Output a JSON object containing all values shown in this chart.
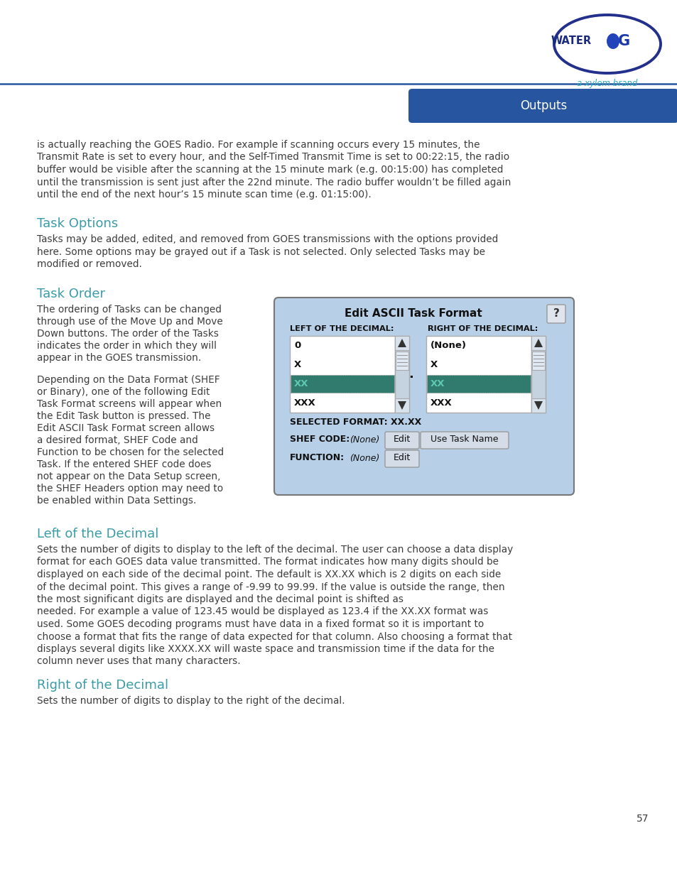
{
  "page_bg": "#ffffff",
  "header_bar_color": "#2855a0",
  "header_text": "Outputs",
  "header_text_color": "#ffffff",
  "section_color_teal": "#3a9ca6",
  "body_text_color": "#3d3d3d",
  "body_para1": "is actually reaching the GOES Radio. For example if scanning occurs every 15 minutes, the\nTransmit Rate is set to every hour, and the Self-Timed Transmit Time is set to 00:22:15, the radio\nbuffer would be visible after the scanning at the 15 minute mark (e.g. 00:15:00) has completed\nuntil the transmission is sent just after the 22nd minute. The radio buffer wouldn’t be filled again\nuntil the end of the next hour’s 15 minute scan time (e.g. 01:15:00).",
  "section1_title": "Task Options",
  "section1_body": "Tasks may be added, edited, and removed from GOES transmissions with the options provided\nhere. Some options may be grayed out if a Task is not selected. Only selected Tasks may be\nmodified or removed.",
  "section2_title": "Task Order",
  "section2_body1": "The ordering of Tasks can be changed\nthrough use of the Move Up and Move\nDown buttons. The order of the Tasks\nindicates the order in which they will\nappear in the GOES transmission.",
  "section2_body2": "Depending on the Data Format (SHEF\nor Binary), one of the following Edit\nTask Format screens will appear when\nthe Edit Task button is pressed. The\nEdit ASCII Task Format screen allows\na desired format, SHEF Code and\nFunction to be chosen for the selected\nTask. If the entered SHEF code does\nnot appear on the Data Setup screen,\nthe SHEF Headers option may need to\nbe enabled within Data Settings.",
  "section3_title": "Left of the Decimal",
  "section3_body": "Sets the number of digits to display to the left of the decimal. The user can choose a data display\nformat for each GOES data value transmitted. The format indicates how many digits should be\ndisplayed on each side of the decimal point. The default is XX.XX which is 2 digits on each side\nof the decimal point. This gives a range of -9.99 to 99.99. If the value is outside the range, then\nthe most significant digits are displayed and the decimal point is shifted as\nneeded. For example a value of 123.45 would be displayed as 123.4 if the XX.XX format was\nused. Some GOES decoding programs must have data in a fixed format so it is important to\nchoose a format that fits the range of data expected for that column. Also choosing a format that\ndisplays several digits like XXXX.XX will waste space and transmission time if the data for the\ncolumn never uses that many characters.",
  "section4_title": "Right of the Decimal",
  "section4_body": "Sets the number of digits to display to the right of the decimal.",
  "page_number": "57",
  "screen_title": "Edit ASCII Task Format",
  "screen_bg": "#b8cfe8",
  "screen_selected_bg": "#317a6e",
  "screen_selected_text": "#60c8b0",
  "left_label": "LEFT OF THE DECIMAL:",
  "right_label": "RIGHT OF THE DECIMAL:",
  "left_items": [
    "0",
    "X",
    "XX",
    "XXX"
  ],
  "right_items": [
    "(None)",
    "X",
    "XX",
    "XXX"
  ],
  "selected_index": 2,
  "selected_format": "SELECTED FORMAT: XX.XX",
  "shef_code_label": "SHEF CODE:",
  "shef_code_value": "(None)",
  "function_label": "FUNCTION:",
  "function_value": "(None)"
}
